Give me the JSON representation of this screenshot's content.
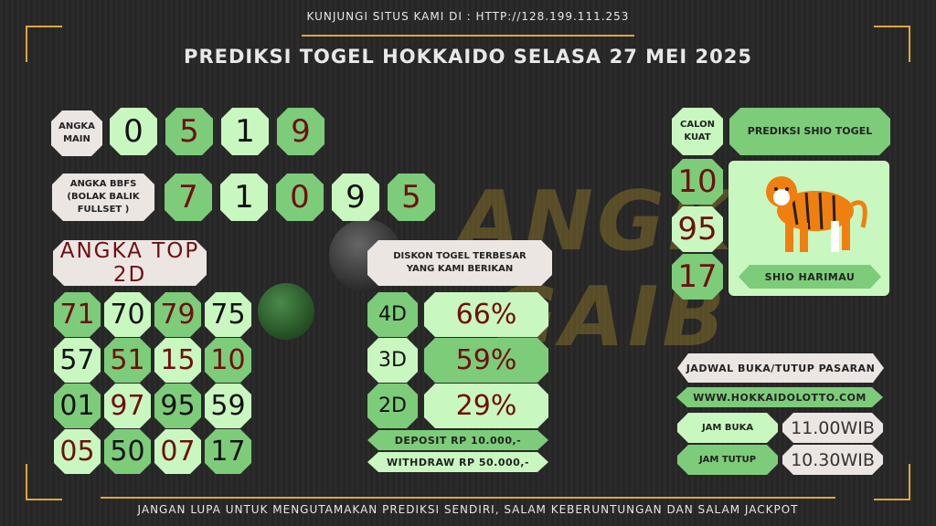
{
  "header": {
    "visit": "KUNJUNGI SITUS KAMI DI : HTTP://128.199.111.253",
    "title": "PREDIKSI TOGEL HOKKAIDO SELASA 27 MEI 2025"
  },
  "footer": "JANGAN LUPA UNTUK MENGUTAMAKAN PREDIKSI SENDIRI, SALAM KEBERUNTUNGAN DAN SALAM JACKPOT",
  "watermark": "ANGKA GAIB",
  "angka_main": {
    "label": "ANGKA\nMAIN",
    "digits": [
      "0",
      "5",
      "1",
      "9"
    ]
  },
  "bbfs": {
    "label": "ANGKA BBFS\n(BOLAK BALIK\nFULLSET )",
    "digits": [
      "7",
      "1",
      "0",
      "9",
      "5"
    ]
  },
  "top2d": {
    "title": "ANGKA TOP 2D",
    "rows": [
      [
        "71",
        "70",
        "79",
        "75"
      ],
      [
        "57",
        "51",
        "15",
        "10"
      ],
      [
        "01",
        "97",
        "95",
        "59"
      ],
      [
        "05",
        "50",
        "07",
        "17"
      ]
    ]
  },
  "diskon": {
    "title": "DISKON TOGEL TERBESAR\nYANG KAMI BERIKAN",
    "items": [
      {
        "type": "4D",
        "value": "66%"
      },
      {
        "type": "3D",
        "value": "59%"
      },
      {
        "type": "2D",
        "value": "29%"
      }
    ],
    "deposit": "DEPOSIT RP 10.000,-",
    "withdraw": "WITHDRAW RP 50.000,-"
  },
  "calon": {
    "label": "CALON\nKUAT",
    "numbers": [
      "10",
      "95",
      "17"
    ]
  },
  "shio": {
    "title": "PREDIKSI SHIO TOGEL",
    "name": "SHIO HARIMAU",
    "icon": "tiger-icon"
  },
  "jadwal": {
    "title": "JADWAL BUKA/TUTUP PASARAN",
    "site": "WWW.HOKKAIDOLOTTO.COM",
    "buka_label": "JAM BUKA",
    "buka": "11.00WIB",
    "tutup_label": "JAM TUTUP",
    "tutup": "10.30WIB"
  },
  "colors": {
    "light_green": "#c9f7c0",
    "mid_green": "#7dcc7a",
    "dark_red": "#6e0f0f",
    "gold": "#e0a63a"
  }
}
